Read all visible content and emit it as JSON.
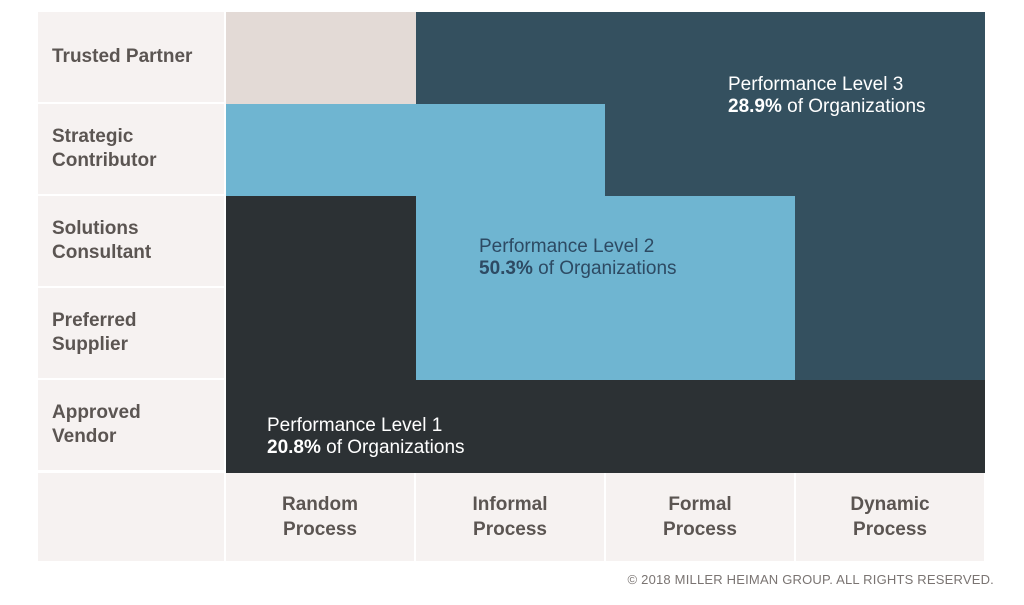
{
  "rows": [
    {
      "label": "Trusted Partner"
    },
    {
      "label": "Strategic\nContributor"
    },
    {
      "label": "Solutions\nConsultant"
    },
    {
      "label": "Preferred\nSupplier"
    },
    {
      "label": "Approved\nVendor"
    }
  ],
  "columns": [
    {
      "label": "Random\nProcess"
    },
    {
      "label": "Informal\nProcess"
    },
    {
      "label": "Formal\nProcess"
    },
    {
      "label": "Dynamic\nProcess"
    }
  ],
  "grid_levels": [
    [
      0,
      3,
      3,
      3
    ],
    [
      2,
      2,
      3,
      3
    ],
    [
      1,
      2,
      2,
      3
    ],
    [
      1,
      2,
      2,
      3
    ],
    [
      1,
      1,
      1,
      1
    ]
  ],
  "colors": {
    "level0": "#e3dad6",
    "level1": "#2c3134",
    "level2": "#6fb5d1",
    "level3": "#34505f",
    "label_bg": "#f6f2f1"
  },
  "levels": [
    {
      "title": "Performance Level 1",
      "percent": "20.8%",
      "suffix": " of Organizations"
    },
    {
      "title": "Performance Level 2",
      "percent": "50.3%",
      "suffix": " of Organizations"
    },
    {
      "title": "Performance Level 3",
      "percent": "28.9%",
      "suffix": " of Organizations"
    }
  ],
  "copyright": "© 2018 MILLER HEIMAN GROUP. ALL RIGHTS RESERVED."
}
